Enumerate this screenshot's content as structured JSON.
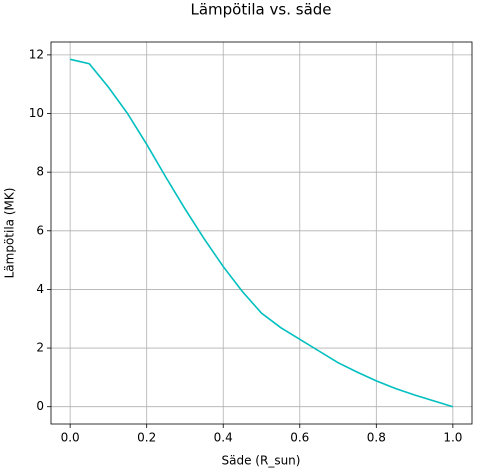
{
  "chart_data": {
    "type": "line",
    "title": "Lämpötila vs. säde",
    "xlabel": "Säde (R_sun)",
    "ylabel": "Lämpötila (MK)",
    "x": [
      0,
      0.05,
      0.1,
      0.15,
      0.2,
      0.25,
      0.3,
      0.35,
      0.4,
      0.45,
      0.5,
      0.55,
      0.6,
      0.65,
      0.7,
      0.75,
      0.8,
      0.85,
      0.9,
      0.95,
      1.0
    ],
    "series": [
      {
        "name": "Lämpötila",
        "color": "#00bfbf",
        "values": [
          11.85,
          11.7,
          10.9,
          10.0,
          8.95,
          7.83,
          6.75,
          5.73,
          4.78,
          3.93,
          3.19,
          2.7,
          2.3,
          1.9,
          1.5,
          1.18,
          0.88,
          0.62,
          0.4,
          0.2,
          0.0
        ]
      }
    ],
    "xlim": [
      -0.05,
      1.05
    ],
    "ylim": [
      -0.59,
      12.44
    ],
    "xticks": [
      {
        "value": 0,
        "label": "0.0"
      },
      {
        "value": 0.2,
        "label": "0.2"
      },
      {
        "value": 0.4,
        "label": "0.4"
      },
      {
        "value": 0.6,
        "label": "0.6"
      },
      {
        "value": 0.8,
        "label": "0.8"
      },
      {
        "value": 1,
        "label": "1.0"
      }
    ],
    "yticks": [
      0,
      2,
      4,
      6,
      8,
      10,
      12
    ],
    "grid": true
  }
}
